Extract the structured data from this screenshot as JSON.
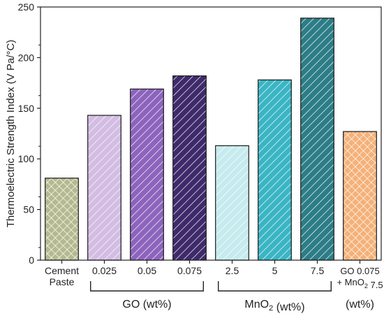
{
  "chart_data": {
    "type": "bar",
    "title": "",
    "ylabel": "Thermoelectric Strength Index (V Pa/°C)",
    "xlabel": "",
    "ylim": [
      0,
      250
    ],
    "yticks": [
      0,
      50,
      100,
      150,
      200,
      250
    ],
    "grid": false,
    "bars": [
      {
        "label": [
          "Cement",
          "Paste"
        ],
        "value": 81,
        "color": "#b5b98f",
        "pattern": "crosshatch"
      },
      {
        "label": [
          "0.025"
        ],
        "value": 143,
        "color": "#d3bde3",
        "pattern": "diagonal"
      },
      {
        "label": [
          "0.05"
        ],
        "value": 169,
        "color": "#8c64bd",
        "pattern": "diagonal"
      },
      {
        "label": [
          "0.075"
        ],
        "value": 182,
        "color": "#3e2a6b",
        "pattern": "diagonal"
      },
      {
        "label": [
          "2.5"
        ],
        "value": 113,
        "color": "#c6ebee",
        "pattern": "diagonal"
      },
      {
        "label": [
          "5"
        ],
        "value": 178,
        "color": "#3ab5c4",
        "pattern": "diagonal"
      },
      {
        "label": [
          "7.5"
        ],
        "value": 239,
        "color": "#2c7d86",
        "pattern": "diagonal"
      },
      {
        "label": [
          "GO 0.075",
          "+ MnO₂ 7.5"
        ],
        "value": 127,
        "color": "#f4b178",
        "pattern": "crosshatch"
      }
    ],
    "groups": [
      {
        "label": "GO (wt%)",
        "from": 1,
        "to": 3
      },
      {
        "label": "MnO₂ (wt%)",
        "from": 4,
        "to": 6
      },
      {
        "label": "(wt%)",
        "from": 7,
        "to": 7,
        "bracket": false
      }
    ]
  }
}
